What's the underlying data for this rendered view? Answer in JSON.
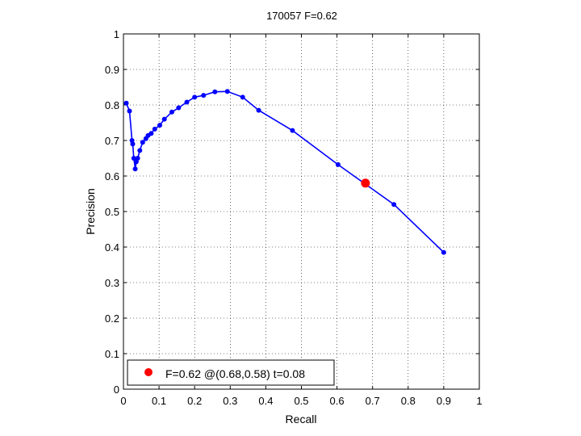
{
  "chart_data": {
    "type": "line",
    "title": "170057 F=0.62",
    "xlabel": "Recall",
    "ylabel": "Precision",
    "xlim": [
      0,
      1
    ],
    "ylim": [
      0,
      1
    ],
    "grid": true,
    "xticks": [
      "0",
      "0.1",
      "0.2",
      "0.3",
      "0.4",
      "0.5",
      "0.6",
      "0.7",
      "0.8",
      "0.9",
      "1"
    ],
    "yticks": [
      "0",
      "0.1",
      "0.2",
      "0.3",
      "0.4",
      "0.5",
      "0.6",
      "0.7",
      "0.8",
      "0.9",
      "1"
    ],
    "series": [
      {
        "color": "#0000ff",
        "marker": "dot",
        "points": [
          [
            0.008,
            0.805
          ],
          [
            0.017,
            0.783
          ],
          [
            0.024,
            0.7
          ],
          [
            0.026,
            0.69
          ],
          [
            0.029,
            0.65
          ],
          [
            0.033,
            0.62
          ],
          [
            0.036,
            0.64
          ],
          [
            0.04,
            0.65
          ],
          [
            0.046,
            0.672
          ],
          [
            0.054,
            0.695
          ],
          [
            0.063,
            0.705
          ],
          [
            0.069,
            0.714
          ],
          [
            0.078,
            0.72
          ],
          [
            0.088,
            0.732
          ],
          [
            0.102,
            0.743
          ],
          [
            0.115,
            0.76
          ],
          [
            0.136,
            0.78
          ],
          [
            0.155,
            0.792
          ],
          [
            0.178,
            0.808
          ],
          [
            0.2,
            0.822
          ],
          [
            0.225,
            0.827
          ],
          [
            0.257,
            0.837
          ],
          [
            0.292,
            0.838
          ],
          [
            0.335,
            0.822
          ],
          [
            0.38,
            0.785
          ],
          [
            0.475,
            0.728
          ],
          [
            0.603,
            0.632
          ],
          [
            0.76,
            0.52
          ],
          [
            0.9,
            0.385
          ]
        ]
      }
    ],
    "highlight": {
      "x": 0.68,
      "y": 0.58,
      "color": "#ff0000",
      "label": "F=0.62 @(0.68,0.58) t=0.08"
    },
    "legend_position": "bottom-left"
  }
}
